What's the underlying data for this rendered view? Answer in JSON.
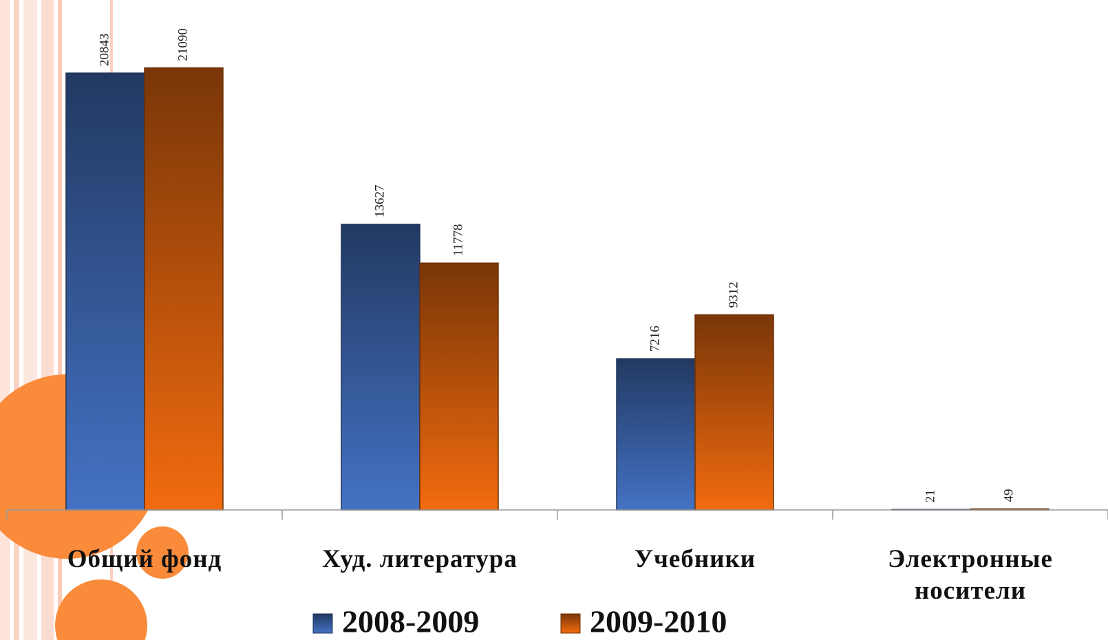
{
  "chart_data": {
    "type": "bar",
    "categories": [
      "Общий фонд",
      "Худ. литература",
      "Учебники",
      "Электронные носители"
    ],
    "series": [
      {
        "name": "2008-2009",
        "color": "#4472c4",
        "values": [
          20843,
          13627,
          7216,
          21
        ]
      },
      {
        "name": "2009-2010",
        "color": "#f26b0f",
        "values": [
          21090,
          11778,
          9312,
          49
        ]
      }
    ],
    "ylim": [
      0,
      24000
    ],
    "legend": "bottom"
  }
}
